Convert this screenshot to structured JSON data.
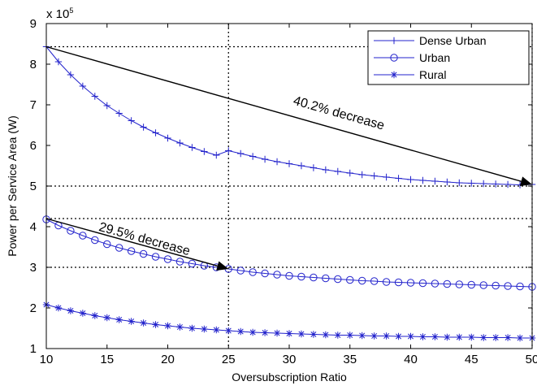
{
  "chart_data": {
    "type": "line",
    "xlabel": "Oversubscription Ratio",
    "ylabel": "Power per Service Area (W)",
    "y_exponent_label": "x 10",
    "y_exponent_power": "5",
    "xlim": [
      10,
      50
    ],
    "ylim": [
      1,
      9
    ],
    "x_ticks": [
      10,
      15,
      20,
      25,
      30,
      35,
      40,
      45,
      50
    ],
    "y_ticks": [
      1,
      2,
      3,
      4,
      5,
      6,
      7,
      8,
      9
    ],
    "grid": false,
    "legend_position": "top-right",
    "x": [
      10,
      11,
      12,
      13,
      14,
      15,
      16,
      17,
      18,
      19,
      20,
      21,
      22,
      23,
      24,
      25,
      26,
      27,
      28,
      29,
      30,
      31,
      32,
      33,
      34,
      35,
      36,
      37,
      38,
      39,
      40,
      41,
      42,
      43,
      44,
      45,
      46,
      47,
      48,
      49,
      50
    ],
    "series": [
      {
        "name": "Dense Urban",
        "marker": "plus",
        "color": "#2323cc",
        "values": [
          8.43,
          8.06,
          7.74,
          7.46,
          7.21,
          6.98,
          6.79,
          6.61,
          6.45,
          6.31,
          6.18,
          6.06,
          5.95,
          5.85,
          5.76,
          5.87,
          5.8,
          5.73,
          5.66,
          5.6,
          5.55,
          5.5,
          5.45,
          5.4,
          5.36,
          5.32,
          5.28,
          5.25,
          5.22,
          5.19,
          5.16,
          5.14,
          5.12,
          5.1,
          5.08,
          5.07,
          5.06,
          5.05,
          5.04,
          5.03,
          5.04
        ]
      },
      {
        "name": "Urban",
        "marker": "circle",
        "color": "#2323cc",
        "values": [
          4.18,
          4.03,
          3.9,
          3.78,
          3.67,
          3.57,
          3.48,
          3.4,
          3.33,
          3.26,
          3.2,
          3.14,
          3.09,
          3.04,
          3.0,
          2.96,
          2.92,
          2.88,
          2.85,
          2.82,
          2.79,
          2.77,
          2.75,
          2.73,
          2.71,
          2.69,
          2.67,
          2.66,
          2.64,
          2.63,
          2.62,
          2.61,
          2.6,
          2.59,
          2.58,
          2.57,
          2.56,
          2.55,
          2.54,
          2.53,
          2.52
        ]
      },
      {
        "name": "Rural",
        "marker": "asterisk",
        "color": "#2323cc",
        "values": [
          2.08,
          2.0,
          1.93,
          1.87,
          1.81,
          1.76,
          1.71,
          1.67,
          1.63,
          1.59,
          1.56,
          1.53,
          1.5,
          1.48,
          1.46,
          1.44,
          1.42,
          1.4,
          1.39,
          1.38,
          1.37,
          1.36,
          1.35,
          1.34,
          1.33,
          1.33,
          1.32,
          1.31,
          1.31,
          1.3,
          1.3,
          1.29,
          1.29,
          1.28,
          1.28,
          1.28,
          1.27,
          1.27,
          1.27,
          1.26,
          1.26
        ]
      }
    ],
    "reference_lines": {
      "horizontal": [
        8.43,
        5.0,
        4.2,
        3.0
      ],
      "vertical": [
        25,
        50
      ]
    },
    "annotations": [
      {
        "text": "40.2% decrease",
        "arrow_from": [
          10,
          8.43
        ],
        "arrow_to": [
          50,
          5.04
        ],
        "text_at": [
          34,
          6.7
        ]
      },
      {
        "text": "29.5% decrease",
        "arrow_from": [
          10,
          4.2
        ],
        "arrow_to": [
          25,
          2.96
        ],
        "text_at": [
          18,
          3.6
        ]
      }
    ]
  }
}
